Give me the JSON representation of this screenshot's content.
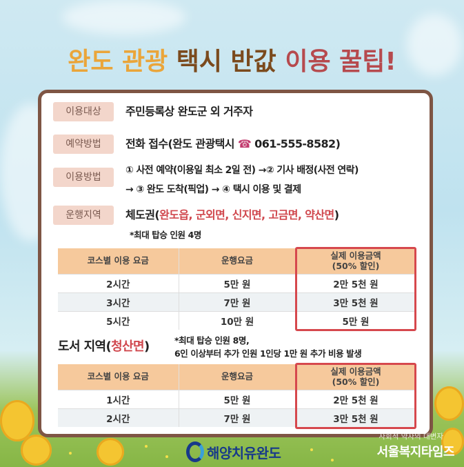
{
  "title": {
    "part1": "완도 관광",
    "part2": "택시 반값",
    "part3": "이용 꿀팁!"
  },
  "colors": {
    "orange": "#eaa53a",
    "brown": "#7b4a1d",
    "rose": "#b64a4e",
    "highlight_red": "#d6484d",
    "header_peach": "#f6c99c",
    "label_pink": "#f3d6cb"
  },
  "info": [
    {
      "label": "이용대상",
      "text": "주민등록상 완도군 외 거주자"
    },
    {
      "label": "예약방법",
      "text": "전화 접수(완도 관광택시 ",
      "phone_icon": "telephone-icon",
      "phone": "061-555-8582)"
    },
    {
      "label": "이용방법",
      "line1": "① 사전 예약(이용일 최소 2일 전) →② 기사 배정(사전 연락)",
      "line2": "→ ③ 완도 도착(픽업) → ④ 택시 이용 및 결제"
    },
    {
      "label": "운행지역",
      "prefix": "체도권(",
      "areas": "완도읍, 군외면, 신지면, 고금면, 약산면",
      "suffix": ")",
      "note": "*최대 탑승 인원 4명"
    }
  ],
  "table1": {
    "headers": [
      "코스별 이용 요금",
      "운행요금",
      "실제 이용금액",
      "(50% 할인)"
    ],
    "rows": [
      [
        "2시간",
        "5만 원",
        "2만 5천 원"
      ],
      [
        "3시간",
        "7만 원",
        "3만 5천 원"
      ],
      [
        "5시간",
        "10만 원",
        "5만 원"
      ]
    ]
  },
  "island": {
    "prefix": "도서 지역(",
    "area": "청산면",
    "suffix": ")",
    "note1": "*최대 탑승 인원 8명,",
    "note2": "6인 이상부터 추가 인원 1인당 1만 원 추가 비용 발생"
  },
  "table2": {
    "headers": [
      "코스별 이용 요금",
      "운행요금",
      "실제 이용금액",
      "(50% 할인)"
    ],
    "rows": [
      [
        "1시간",
        "5만 원",
        "2만 5천 원"
      ],
      [
        "2시간",
        "7만 원",
        "3만 5천 원"
      ]
    ]
  },
  "footer": {
    "logo": "해양치유완도",
    "watermark_sub": "사회적 약자의 대변자",
    "watermark": "서울복지타임즈"
  }
}
